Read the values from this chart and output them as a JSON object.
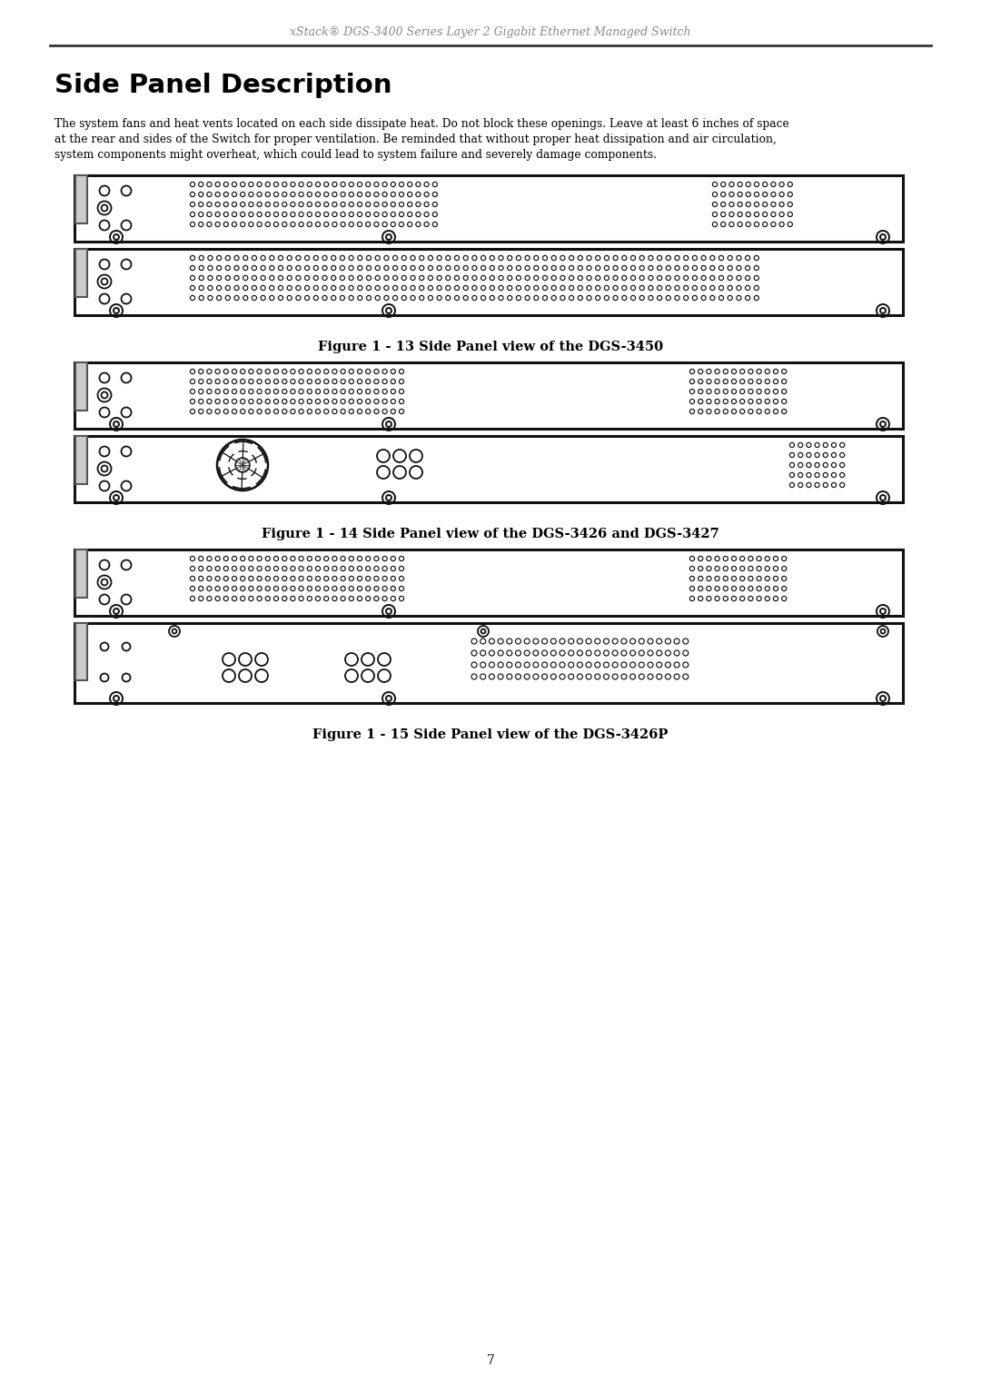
{
  "page_title": "xStack® DGS-3400 Series Layer 2 Gigabit Ethernet Managed Switch",
  "section_title": "Side Panel Description",
  "body_lines": [
    "The system fans and heat vents located on each side dissipate heat. Do not block these openings. Leave at least 6 inches of space",
    "at the rear and sides of the Switch for proper ventilation. Be reminded that without proper heat dissipation and air circulation,",
    "system components might overheat, which could lead to system failure and severely damage components."
  ],
  "figure13_caption": "Figure 1 - 13 Side Panel view of the DGS-3450",
  "figure14_caption": "Figure 1 - 14 Side Panel view of the DGS-3426 and DGS-3427",
  "figure15_caption": "Figure 1 - 15 Side Panel view of the DGS-3426P",
  "page_number": "7",
  "bg_color": "#ffffff",
  "text_color": "#000000"
}
